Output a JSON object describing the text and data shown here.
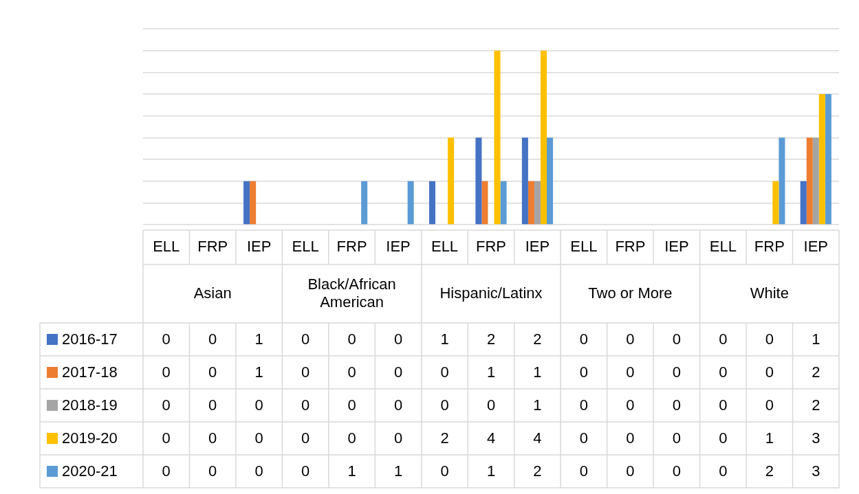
{
  "chart_data": {
    "type": "bar",
    "categories": [
      "ELL",
      "FRP",
      "IEP",
      "ELL",
      "FRP",
      "IEP",
      "ELL",
      "FRP",
      "IEP",
      "ELL",
      "FRP",
      "IEP",
      "ELL",
      "FRP",
      "IEP"
    ],
    "annotations": [
      "Asian",
      "Black/African American",
      "Hispanic/Latinx",
      "Two or More",
      "White"
    ],
    "series": [
      {
        "name": "2016-17",
        "color": "#4472c4",
        "values": [
          0,
          0,
          1,
          0,
          0,
          0,
          1,
          2,
          2,
          0,
          0,
          0,
          0,
          0,
          1
        ]
      },
      {
        "name": "2017-18",
        "color": "#ed7d31",
        "values": [
          0,
          0,
          1,
          0,
          0,
          0,
          0,
          1,
          1,
          0,
          0,
          0,
          0,
          0,
          2
        ]
      },
      {
        "name": "2018-19",
        "color": "#a5a5a5",
        "values": [
          0,
          0,
          0,
          0,
          0,
          0,
          0,
          0,
          1,
          0,
          0,
          0,
          0,
          0,
          2
        ]
      },
      {
        "name": "2019-20",
        "color": "#ffc000",
        "values": [
          0,
          0,
          0,
          0,
          0,
          0,
          2,
          4,
          4,
          0,
          0,
          0,
          0,
          1,
          3
        ]
      },
      {
        "name": "2020-21",
        "color": "#5b9bd5",
        "values": [
          0,
          0,
          0,
          0,
          1,
          1,
          0,
          1,
          2,
          0,
          0,
          0,
          0,
          2,
          3
        ]
      }
    ],
    "ylim": [
      0,
      4.5
    ],
    "yticks": [
      {
        "value": 0,
        "label": null
      },
      {
        "value": 0.5,
        "label": null
      },
      {
        "value": 1,
        "label": null
      },
      {
        "value": 1.5,
        "label": null
      },
      {
        "value": 2,
        "label": null
      },
      {
        "value": 2.5,
        "label": null
      },
      {
        "value": 3,
        "label": null
      },
      {
        "value": 3.5,
        "label": null
      },
      {
        "value": 4,
        "label": null
      },
      {
        "value": 4.5,
        "label": null
      }
    ],
    "grid": "y",
    "tick_labels": "x",
    "legend": "bottom",
    "data_labels": true
  }
}
